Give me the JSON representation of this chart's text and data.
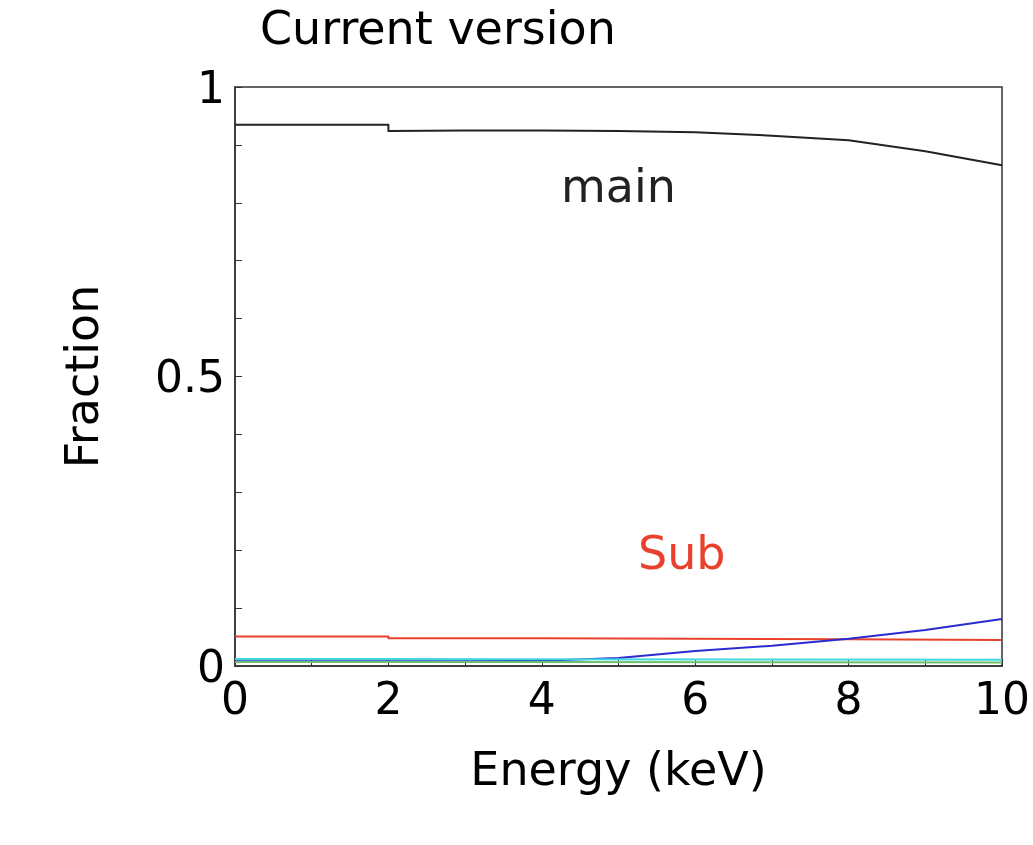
{
  "chart_data": {
    "type": "line",
    "title": "Current version",
    "xlabel": "Energy (keV)",
    "ylabel": "Fraction",
    "xlim": [
      0,
      10
    ],
    "xticks": [
      0,
      {
        "value": 1,
        "label": null
      },
      2,
      {
        "value": 3,
        "label": null
      },
      4,
      {
        "value": 5,
        "label": null
      },
      6,
      {
        "value": 7,
        "label": null
      },
      8,
      {
        "value": 9,
        "label": null
      },
      10
    ],
    "ylim": [
      0,
      1
    ],
    "yticks": [
      0,
      {
        "value": 0.1,
        "label": null
      },
      {
        "value": 0.2,
        "label": null
      },
      {
        "value": 0.3,
        "label": null
      },
      {
        "value": 0.4,
        "label": null
      },
      0.5,
      {
        "value": 0.6,
        "label": null
      },
      {
        "value": 0.7,
        "label": null
      },
      {
        "value": 0.8,
        "label": null
      },
      {
        "value": 0.9,
        "label": null
      },
      1
    ],
    "grid": false,
    "marker": "none",
    "line_style": "solid",
    "series": [
      {
        "name": "main",
        "color": "#222222",
        "x": [
          0,
          2,
          2,
          3,
          4,
          5,
          6,
          7,
          8,
          9,
          10
        ],
        "values": [
          0.935,
          0.935,
          0.924,
          0.925,
          0.925,
          0.924,
          0.922,
          0.916,
          0.908,
          0.889,
          0.865
        ]
      },
      {
        "name": "Sub",
        "color": "#e8412c",
        "x": [
          0,
          2,
          2,
          4,
          6,
          8,
          10
        ],
        "values": [
          0.051,
          0.051,
          0.048,
          0.048,
          0.047,
          0.046,
          0.045
        ]
      },
      {
        "color": "#2b2bd0",
        "x": [
          0,
          2,
          2,
          3,
          4,
          5,
          6,
          7,
          8,
          9,
          10
        ],
        "values": [
          0.008,
          0.008,
          0.008,
          0.008,
          0.009,
          0.014,
          0.026,
          0.035,
          0.047,
          0.062,
          0.081
        ]
      },
      {
        "color": "#40d8e0",
        "x": [
          0,
          2,
          2,
          10
        ],
        "values": [
          0.012,
          0.012,
          0.011,
          0.011
        ]
      },
      {
        "color": "#6cc06c",
        "x": [
          0,
          2,
          2,
          10
        ],
        "values": [
          0.007,
          0.007,
          0.006,
          0.006
        ]
      }
    ]
  }
}
